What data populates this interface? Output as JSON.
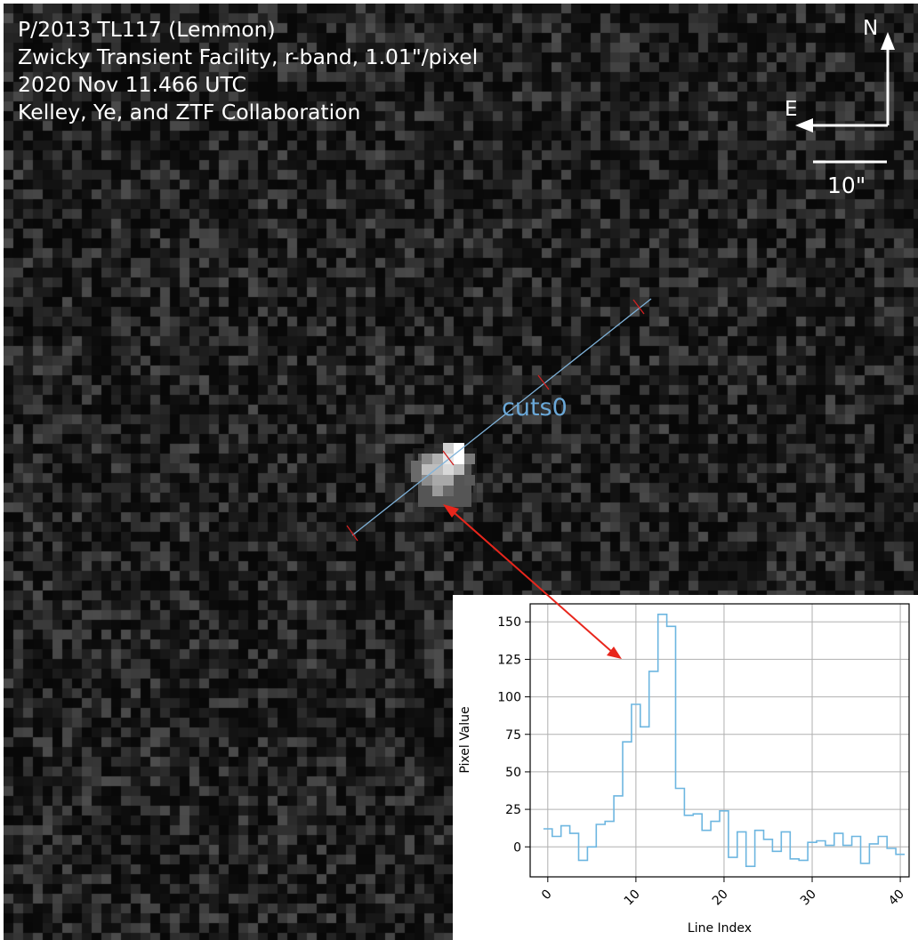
{
  "caption": {
    "line1": "P/2013 TL117 (Lemmon)",
    "line2": "Zwicky Transient Facility, r-band, 1.01\"/pixel",
    "line3": "2020 Nov 11.466 UTC",
    "line4": "Kelley, Ye, and ZTF Collaboration"
  },
  "compass": {
    "north": "N",
    "east": "E"
  },
  "scale_bar": {
    "label": "10\""
  },
  "cut": {
    "label": "cuts0",
    "color": "#6aa8d8"
  },
  "annotation": {
    "arrow_color": "#e8261c"
  },
  "chart_data": {
    "type": "line",
    "drawstyle": "steps",
    "xlabel": "Line Index",
    "ylabel": "Pixel Value",
    "x_ticks": [
      0,
      10,
      20,
      30,
      40
    ],
    "y_ticks": [
      0,
      25,
      50,
      75,
      100,
      125,
      150
    ],
    "xlim": [
      -2,
      41
    ],
    "ylim": [
      -20,
      162
    ],
    "grid": true,
    "series": [
      {
        "color": "#6db6e0",
        "x": [
          0,
          1,
          2,
          3,
          4,
          5,
          6,
          7,
          8,
          9,
          10,
          11,
          12,
          13,
          14,
          15,
          16,
          17,
          18,
          19,
          20,
          21,
          22,
          23,
          24,
          25,
          26,
          27,
          28,
          29,
          30,
          31,
          32,
          33,
          34,
          35,
          36,
          37,
          38,
          39,
          40
        ],
        "values": [
          12,
          7,
          14,
          9,
          -9,
          0,
          15,
          17,
          34,
          70,
          95,
          80,
          117,
          155,
          147,
          39,
          21,
          22,
          11,
          17,
          24,
          -7,
          10,
          -13,
          11,
          5,
          -3,
          10,
          -8,
          -9,
          3,
          4,
          1,
          9,
          1,
          7,
          -11,
          2,
          7,
          -1,
          -5
        ]
      }
    ]
  }
}
